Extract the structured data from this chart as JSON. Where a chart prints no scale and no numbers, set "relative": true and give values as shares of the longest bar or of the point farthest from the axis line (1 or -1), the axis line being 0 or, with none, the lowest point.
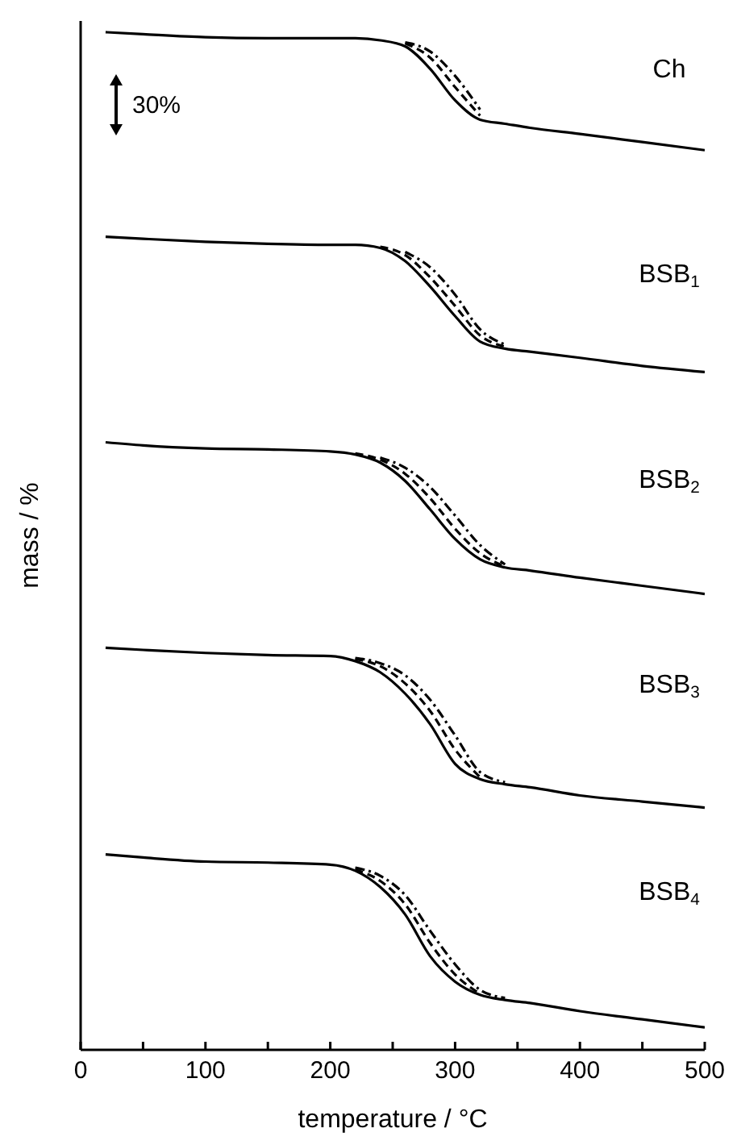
{
  "chart_data": {
    "type": "line",
    "relative": true,
    "xlabel": "temperature / °C",
    "ylabel": "mass / %",
    "x": [
      20,
      50,
      100,
      150,
      200,
      220,
      240,
      260,
      280,
      300,
      320,
      340,
      360,
      400,
      450,
      500
    ],
    "xlim": [
      0,
      500
    ],
    "xticks": [
      0,
      {
        "value": 50,
        "label": null
      },
      100,
      {
        "value": 150,
        "label": null
      },
      200,
      {
        "value": 250,
        "label": null
      },
      300,
      {
        "value": 350,
        "label": null
      },
      400,
      {
        "value": 450,
        "label": null
      },
      500
    ],
    "grid": false,
    "legend": false,
    "marker": "none",
    "series": [
      {
        "color": "#000000",
        "line_style": "solid",
        "values": [
          1.0,
          0.998,
          0.995,
          0.994,
          0.994,
          0.994,
          0.992,
          0.986,
          0.964,
          0.933,
          0.914,
          0.91,
          0.906,
          0.9,
          0.892,
          0.884
        ]
      },
      {
        "color": "#000000",
        "line_style": "dashed",
        "values": [
          null,
          null,
          null,
          null,
          null,
          null,
          null,
          0.989,
          0.975,
          0.946,
          0.918,
          null,
          null,
          null,
          null,
          null
        ]
      },
      {
        "color": "#000000",
        "line_style": "dashdot",
        "values": [
          null,
          null,
          null,
          null,
          null,
          null,
          null,
          0.99,
          0.981,
          0.957,
          0.924,
          null,
          null,
          null,
          null,
          null
        ]
      },
      {
        "color": "#000000",
        "line_style": "solid",
        "values": [
          0.799,
          0.797,
          0.794,
          0.792,
          0.791,
          0.791,
          0.788,
          0.775,
          0.75,
          0.721,
          0.696,
          0.689,
          0.686,
          0.68,
          0.672,
          0.666
        ]
      },
      {
        "color": "#000000",
        "line_style": "dashed",
        "values": [
          null,
          null,
          null,
          null,
          null,
          null,
          0.789,
          0.781,
          0.759,
          0.731,
          0.702,
          0.691,
          null,
          null,
          null,
          null
        ]
      },
      {
        "color": "#000000",
        "line_style": "dashdot",
        "values": [
          null,
          null,
          null,
          null,
          null,
          null,
          null,
          0.784,
          0.769,
          0.742,
          0.708,
          0.693,
          null,
          null,
          null,
          null
        ]
      },
      {
        "color": "#000000",
        "line_style": "solid",
        "values": [
          0.597,
          0.594,
          0.591,
          0.59,
          0.588,
          0.585,
          0.577,
          0.559,
          0.531,
          0.502,
          0.482,
          0.474,
          0.471,
          0.464,
          0.456,
          0.448
        ]
      },
      {
        "color": "#000000",
        "line_style": "dashed",
        "values": [
          null,
          null,
          null,
          null,
          null,
          0.586,
          0.58,
          0.566,
          0.542,
          0.512,
          0.488,
          0.475,
          null,
          null,
          null,
          null
        ]
      },
      {
        "color": "#000000",
        "line_style": "dashdot",
        "values": [
          null,
          null,
          null,
          null,
          null,
          null,
          0.582,
          0.572,
          0.553,
          0.525,
          0.496,
          0.477,
          null,
          null,
          null,
          null
        ]
      },
      {
        "color": "#000000",
        "line_style": "solid",
        "values": [
          0.395,
          0.393,
          0.39,
          0.388,
          0.387,
          0.382,
          0.371,
          0.35,
          0.32,
          0.281,
          0.266,
          0.261,
          0.258,
          0.25,
          0.244,
          0.238
        ]
      },
      {
        "color": "#000000",
        "line_style": "dashed",
        "values": [
          null,
          null,
          null,
          null,
          null,
          0.384,
          0.377,
          0.36,
          0.333,
          0.295,
          0.268,
          null,
          null,
          null,
          null,
          null
        ]
      },
      {
        "color": "#000000",
        "line_style": "dashdot",
        "values": [
          null,
          null,
          null,
          null,
          null,
          0.385,
          0.38,
          0.368,
          0.344,
          0.309,
          0.273,
          0.263,
          null,
          null,
          null,
          null
        ]
      },
      {
        "color": "#000000",
        "line_style": "solid",
        "values": [
          0.192,
          0.189,
          0.185,
          0.184,
          0.182,
          0.176,
          0.16,
          0.133,
          0.092,
          0.067,
          0.054,
          0.049,
          0.046,
          0.038,
          0.03,
          0.022
        ]
      },
      {
        "color": "#000000",
        "line_style": "dashed",
        "values": [
          null,
          null,
          null,
          null,
          null,
          0.177,
          0.166,
          0.143,
          0.105,
          0.074,
          0.055,
          null,
          null,
          null,
          null,
          null
        ]
      },
      {
        "color": "#000000",
        "line_style": "dashdot",
        "values": [
          null,
          null,
          null,
          null,
          null,
          0.179,
          0.171,
          0.152,
          0.117,
          0.084,
          0.059,
          0.051,
          null,
          null,
          null,
          null
        ]
      }
    ],
    "annotations": [
      "30%",
      "Ch",
      "BSB$_{1}$",
      "BSB$_{2}$",
      "BSB$_{3}$",
      "BSB$_{4}$"
    ]
  }
}
